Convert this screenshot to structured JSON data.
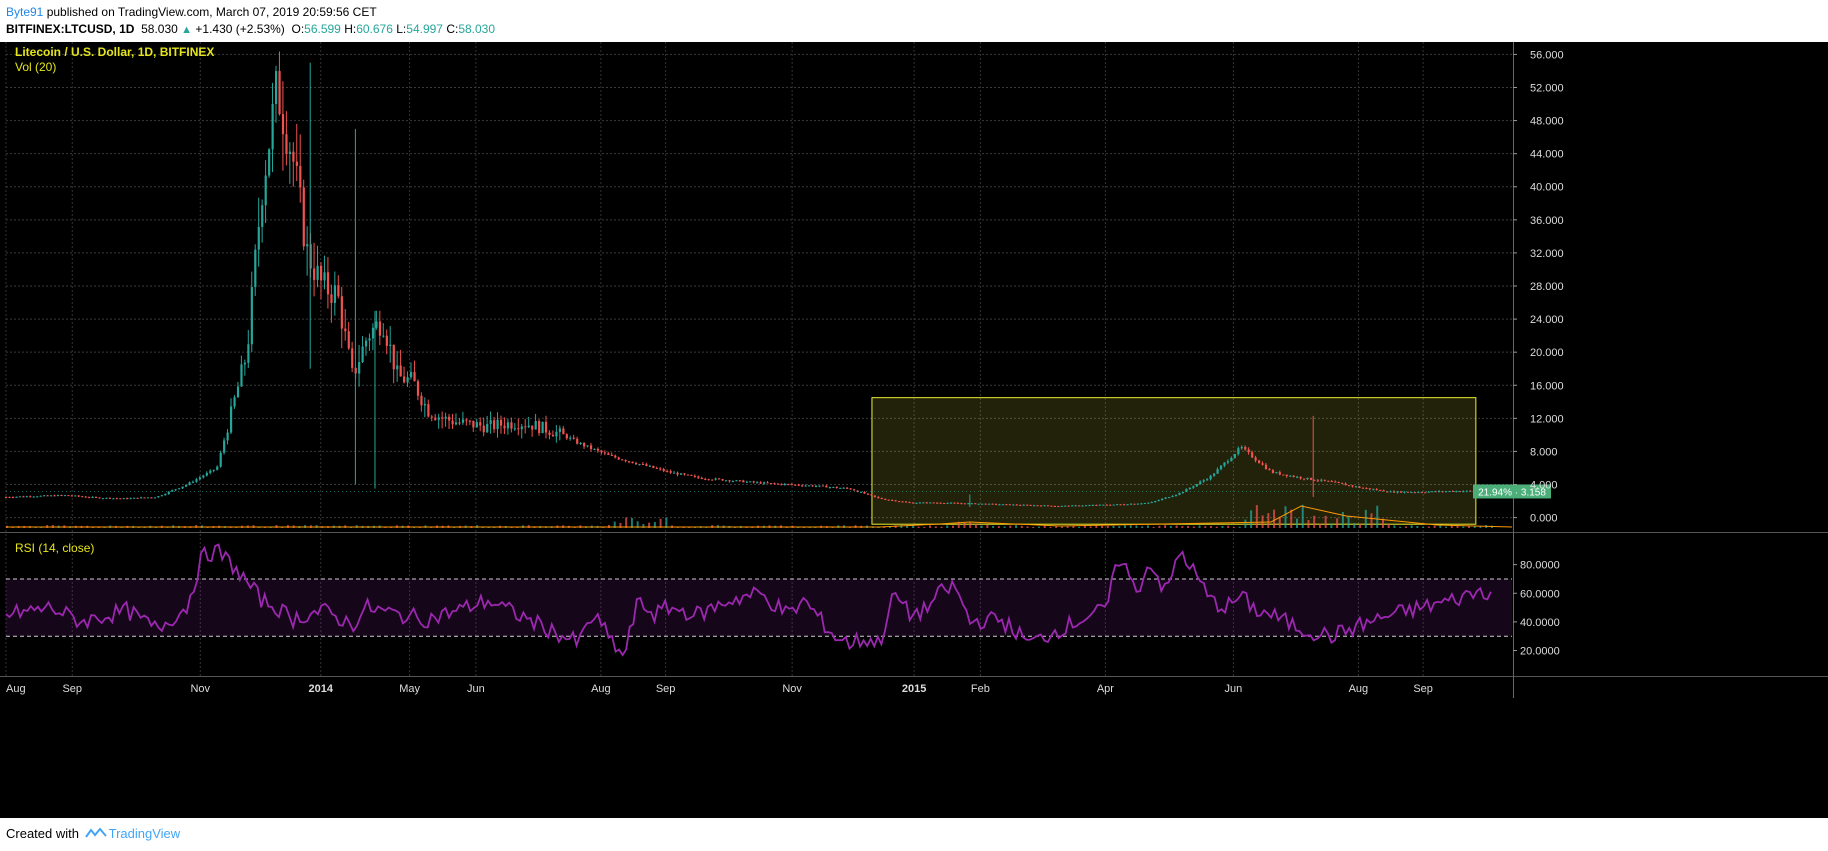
{
  "header": {
    "author": "Byte91",
    "published_text": "published on TradingView.com, March 07, 2019 20:59:56 CET",
    "symbol": "BITFINEX:LTCUSD, 1D",
    "last": "58.030",
    "change_arrow": "▲",
    "change": "+1.430 (+2.53%)",
    "open_label": "O:",
    "open": "56.599",
    "high_label": "H:",
    "high": "60.676",
    "low_label": "L:",
    "low": "54.997",
    "close_label": "C:",
    "close": "58.030"
  },
  "legend": {
    "title": "Litecoin / U.S. Dollar, 1D, BITFINEX",
    "volume": "Vol (20)",
    "rsi": "RSI (14, close)"
  },
  "price_badge": "21.94% · 3.158",
  "footer": {
    "created_with": "Created with",
    "brand": "TradingView"
  },
  "colors": {
    "up": "#26a69a",
    "down": "#ef5350",
    "rsi": "#9c27b0",
    "box": "#eeee33",
    "legend": "#e5e51a",
    "background": "#000000"
  },
  "chart_data": {
    "type": "candlestick",
    "title": "Litecoin / U.S. Dollar, 1D, BITFINEX",
    "price_axis": {
      "ticks": [
        "56.000",
        "52.000",
        "48.000",
        "44.000",
        "40.000",
        "36.000",
        "32.000",
        "28.000",
        "24.000",
        "20.000",
        "16.000",
        "12.000",
        "8.000",
        "4.000",
        "0.000"
      ],
      "ylim": [
        -1.5,
        57.5
      ]
    },
    "time_axis": {
      "labels": [
        "Aug",
        "Sep",
        "Nov",
        "2014",
        "May",
        "Jun",
        "Aug",
        "Sep",
        "Nov",
        "2015",
        "Feb",
        "Apr",
        "Jun",
        "Aug",
        "Sep"
      ]
    },
    "price_series": {
      "name": "LTCUSD",
      "x": [
        0,
        2,
        4,
        6,
        8,
        10,
        12,
        14,
        16,
        17,
        18,
        19,
        20,
        21,
        22,
        23,
        24,
        25,
        26,
        27,
        28,
        29,
        30,
        32,
        33,
        34,
        35,
        37,
        38,
        40,
        42,
        44,
        46,
        48,
        50,
        52,
        54,
        56,
        58,
        60,
        62,
        64,
        66,
        68,
        70,
        72,
        74,
        76,
        78,
        80,
        82,
        84,
        86,
        88,
        90,
        92,
        94,
        96,
        98,
        100
      ],
      "close": [
        2.5,
        2.6,
        2.7,
        2.4,
        2.3,
        2.5,
        4.0,
        6.0,
        20.0,
        40.0,
        52.0,
        44.0,
        32.0,
        28.0,
        27.0,
        17.0,
        22.0,
        24.0,
        17.0,
        16.5,
        13.0,
        12.0,
        11.5,
        11.0,
        11.3,
        11.5,
        11.2,
        10.0,
        9.0,
        7.5,
        6.5,
        5.5,
        4.8,
        4.5,
        4.2,
        4.0,
        3.8,
        3.5,
        2.3,
        1.8,
        1.8,
        1.7,
        1.6,
        1.5,
        1.4,
        1.5,
        1.6,
        1.8,
        3.0,
        5.0,
        8.5,
        5.5,
        4.8,
        4.3,
        3.6,
        3.1,
        3.1,
        3.2,
        3.2,
        3.16
      ]
    },
    "volume": {
      "name": "Vol (20)"
    },
    "rsi": {
      "name": "RSI (14, close)",
      "ticks": [
        "80.0000",
        "60.0000",
        "40.0000",
        "20.0000"
      ],
      "upper_band": 70,
      "lower_band": 30,
      "x": [
        0,
        3,
        5,
        8,
        10,
        12,
        13,
        14,
        15,
        17,
        18,
        19,
        21,
        23,
        24,
        26,
        28,
        30,
        32,
        34,
        36,
        38,
        39,
        40,
        41,
        42,
        43,
        44,
        46,
        48,
        50,
        52,
        53,
        55,
        56,
        57,
        58,
        59,
        60,
        61,
        62,
        63,
        64,
        66,
        68,
        70,
        72,
        73,
        74,
        75,
        76,
        77,
        78,
        80,
        81,
        82,
        83,
        84,
        85,
        86,
        88,
        90,
        92,
        94,
        96,
        98,
        100
      ],
      "values": [
        45,
        50,
        40,
        48,
        35,
        50,
        85,
        90,
        80,
        55,
        50,
        42,
        48,
        38,
        50,
        45,
        42,
        48,
        55,
        45,
        35,
        25,
        45,
        30,
        15,
        55,
        45,
        50,
        45,
        55,
        60,
        45,
        55,
        30,
        25,
        28,
        25,
        60,
        45,
        48,
        60,
        65,
        40,
        42,
        25,
        35,
        45,
        48,
        88,
        60,
        82,
        60,
        90,
        55,
        50,
        58,
        48,
        45,
        40,
        35,
        30,
        38,
        45,
        50,
        55,
        62,
        58
      ]
    },
    "highlight_box": {
      "x_start_label": "Dec 2014",
      "x_end_label": "Oct 2015",
      "price_top": 14.5,
      "price_bottom": -0.8
    }
  }
}
